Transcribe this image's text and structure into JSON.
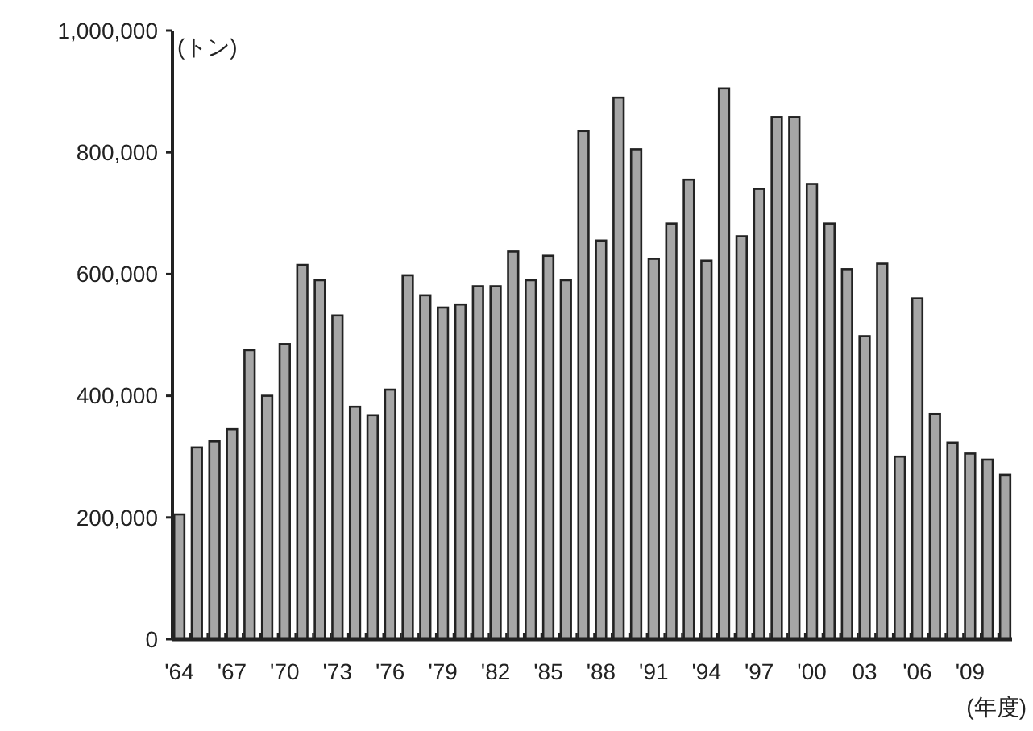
{
  "chart_data": {
    "type": "bar",
    "ylabel": "(トン)",
    "xlabel": "(年度)",
    "categories": [
      "'64",
      null,
      null,
      "'67",
      null,
      null,
      "'70",
      null,
      null,
      "'73",
      null,
      null,
      "'76",
      null,
      null,
      "'79",
      null,
      null,
      "'82",
      null,
      null,
      "'85",
      null,
      null,
      "'88",
      null,
      null,
      "'91",
      null,
      null,
      "'94",
      null,
      null,
      "'97",
      null,
      null,
      "'00",
      null,
      null,
      "03",
      null,
      null,
      "'06",
      null,
      null,
      "'09",
      null,
      null
    ],
    "values": [
      205000,
      315000,
      325000,
      345000,
      475000,
      400000,
      485000,
      615000,
      590000,
      532000,
      382000,
      368000,
      410000,
      598000,
      565000,
      545000,
      550000,
      580000,
      580000,
      637000,
      590000,
      630000,
      590000,
      835000,
      655000,
      890000,
      805000,
      625000,
      683000,
      755000,
      622000,
      905000,
      662000,
      740000,
      858000,
      858000,
      748000,
      683000,
      608000,
      498000,
      617000,
      300000,
      560000,
      370000,
      323000,
      305000,
      295000,
      270000
    ],
    "color": "#a6a6a6",
    "ylim": [
      0,
      1000000
    ],
    "yticks": [
      {
        "value": 0,
        "label": "0"
      },
      {
        "value": 200000,
        "label": "200,000"
      },
      {
        "value": 400000,
        "label": "400,000"
      },
      {
        "value": 600000,
        "label": "600,000"
      },
      {
        "value": 800000,
        "label": "800,000"
      },
      {
        "value": 1000000,
        "label": "1,000,000"
      }
    ],
    "grid": false
  }
}
